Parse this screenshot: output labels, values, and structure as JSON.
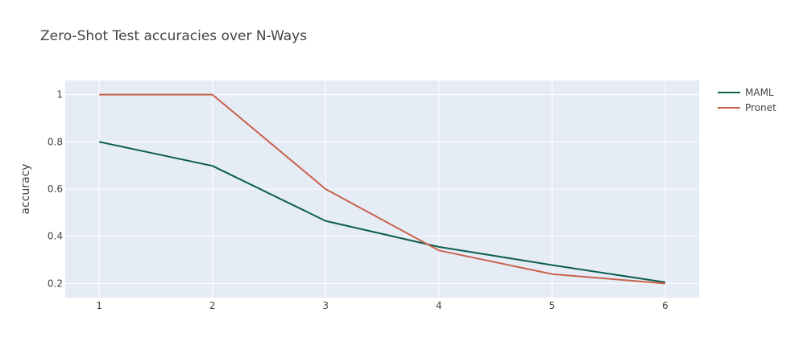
{
  "chart_data": {
    "type": "line",
    "title": "Zero-Shot Test accuracies over N-Ways",
    "xlabel": "",
    "ylabel": "accuracy",
    "x": [
      1,
      2,
      3,
      4,
      5,
      6
    ],
    "xlim": [
      0.7,
      6.3
    ],
    "ylim": [
      0.14,
      1.06
    ],
    "x_ticks": [
      1,
      2,
      3,
      4,
      5,
      6
    ],
    "y_ticks": [
      0.2,
      0.4,
      0.6,
      0.8,
      1
    ],
    "y_tick_labels": [
      "0.2",
      "0.4",
      "0.6",
      "0.8",
      "1"
    ],
    "grid": true,
    "legend_position": "top-right",
    "plot_bg": "#e5ecf6",
    "series": [
      {
        "name": "MAML",
        "color": "#0c5e4e",
        "values": [
          0.8,
          0.698,
          0.465,
          0.355,
          0.278,
          0.205
        ]
      },
      {
        "name": "Pronet",
        "color": "#c8624a",
        "values": [
          1.0,
          1.0,
          0.6,
          0.34,
          0.24,
          0.2
        ]
      }
    ]
  }
}
